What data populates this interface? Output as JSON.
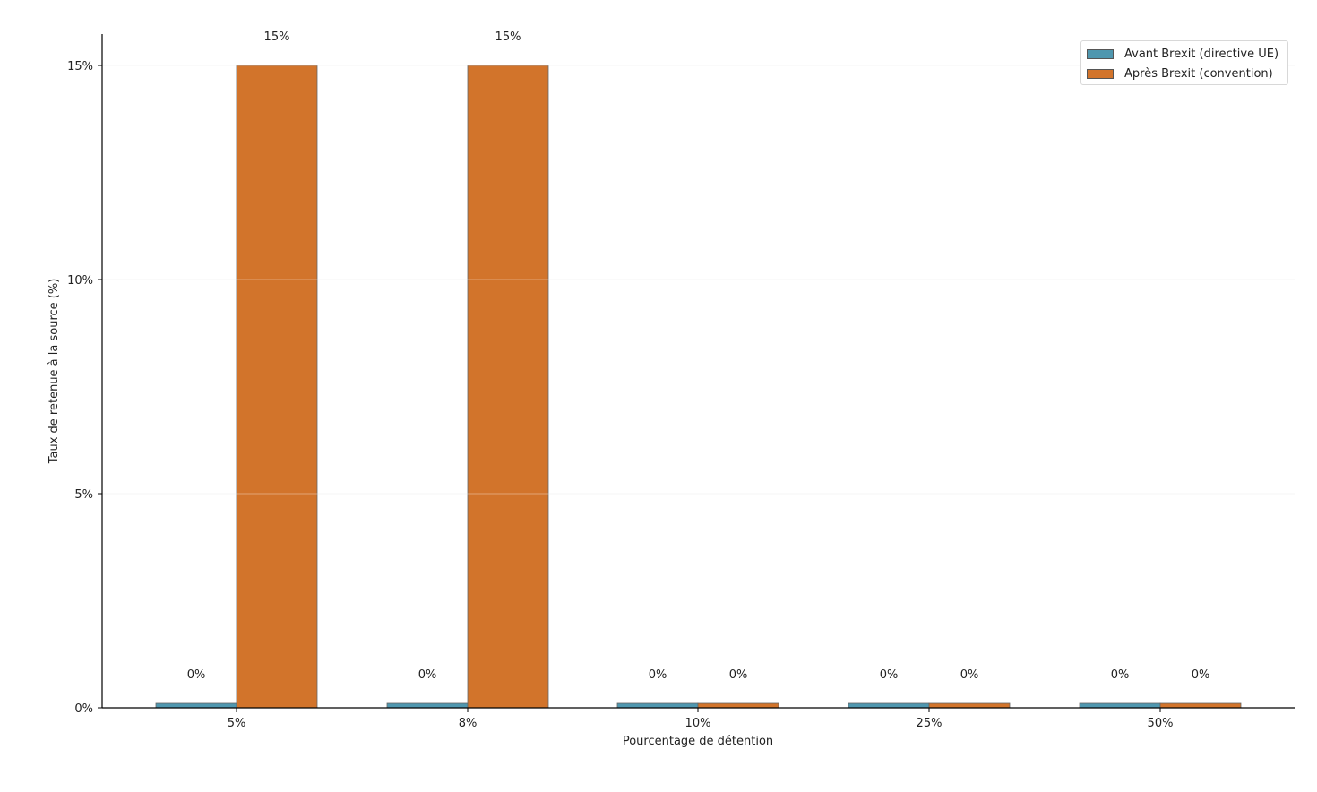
{
  "chart_data": {
    "type": "bar",
    "title": "",
    "xlabel": "Pourcentage de détention",
    "ylabel": "Taux de retenue à la source (%)",
    "categories": [
      "5%",
      "8%",
      "10%",
      "25%",
      "50%"
    ],
    "series": [
      {
        "name": "Avant Brexit (directive UE)",
        "color": "#4f97af",
        "values": [
          0,
          0,
          0,
          0,
          0
        ],
        "labels": [
          "0%",
          "0%",
          "0%",
          "0%",
          "0%"
        ]
      },
      {
        "name": "Après Brexit (convention)",
        "color": "#d2742b",
        "values": [
          15,
          15,
          0,
          0,
          0
        ],
        "labels": [
          "15%",
          "15%",
          "0%",
          "0%",
          "0%"
        ]
      }
    ],
    "ylim": [
      0,
      15.75
    ],
    "yticks": [
      0,
      5,
      10,
      15
    ],
    "ytick_labels": [
      "0%",
      "5%",
      "10%",
      "15%"
    ],
    "grid": true,
    "legend_position": "upper right"
  },
  "legend": {
    "items": [
      {
        "label": "Avant Brexit (directive UE)",
        "color": "#4f97af"
      },
      {
        "label": "Après Brexit (convention)",
        "color": "#d2742b"
      }
    ]
  }
}
